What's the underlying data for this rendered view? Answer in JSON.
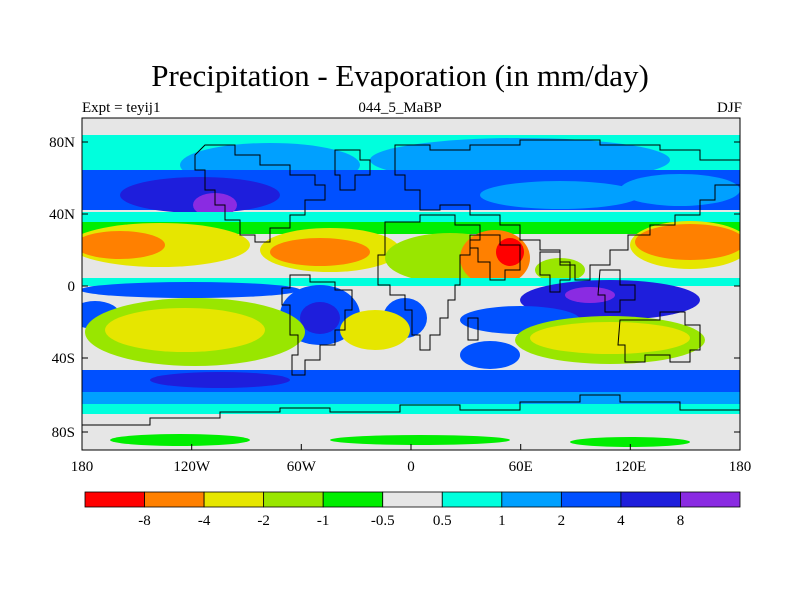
{
  "title": "Precipitation - Evaporation (in mm/day)",
  "subtitle_left": "Expt = teyij1",
  "subtitle_center": "044_5_MaBP",
  "subtitle_right": "DJF",
  "lat_labels": [
    "80N",
    "40N",
    "0",
    "40S",
    "80S"
  ],
  "lon_labels": [
    "180",
    "120W",
    "60W",
    "0",
    "60E",
    "120E",
    "180"
  ],
  "colorbar": {
    "labels": [
      "-8",
      "-4",
      "-2",
      "-1",
      "-0.5",
      "0.5",
      "1",
      "2",
      "4",
      "8"
    ],
    "colors": [
      "#ff0000",
      "#ff8000",
      "#e6e600",
      "#99e600",
      "#00ee00",
      "#e6e6e6",
      "#00ffdd",
      "#00a0ff",
      "#0050ff",
      "#1e1edc",
      "#8a2be2"
    ]
  },
  "map_colors": {
    "neutral": "#e6e6e6",
    "red": "#ff0000",
    "orange": "#ff8000",
    "yellow": "#e6e600",
    "lime": "#99e600",
    "green": "#00ee00",
    "cyan": "#00ffdd",
    "sky": "#00a0ff",
    "blue": "#0050ff",
    "navy": "#1e1edc",
    "violet": "#8a2be2"
  }
}
